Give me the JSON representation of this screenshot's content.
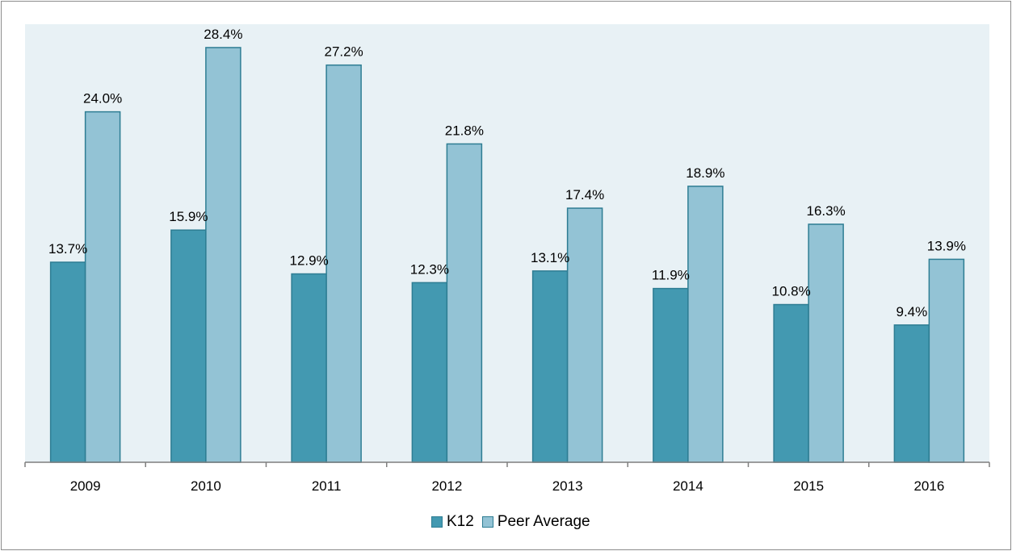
{
  "chart_data": {
    "type": "bar",
    "categories": [
      "2009",
      "2010",
      "2011",
      "2012",
      "2013",
      "2014",
      "2015",
      "2016"
    ],
    "series": [
      {
        "name": "K12",
        "values": [
          13.7,
          15.9,
          12.9,
          12.3,
          13.1,
          11.9,
          10.8,
          9.4
        ],
        "color": "#4399b1"
      },
      {
        "name": "Peer Average",
        "values": [
          24.0,
          28.4,
          27.2,
          21.8,
          17.4,
          18.9,
          16.3,
          13.9
        ],
        "color": "#93c3d5"
      }
    ],
    "value_format": "%",
    "ylim": [
      0,
      30
    ],
    "grid": false,
    "legend_position": "bottom",
    "plot_background": "#e8f1f5",
    "bar_outline": "#2e7d93"
  }
}
